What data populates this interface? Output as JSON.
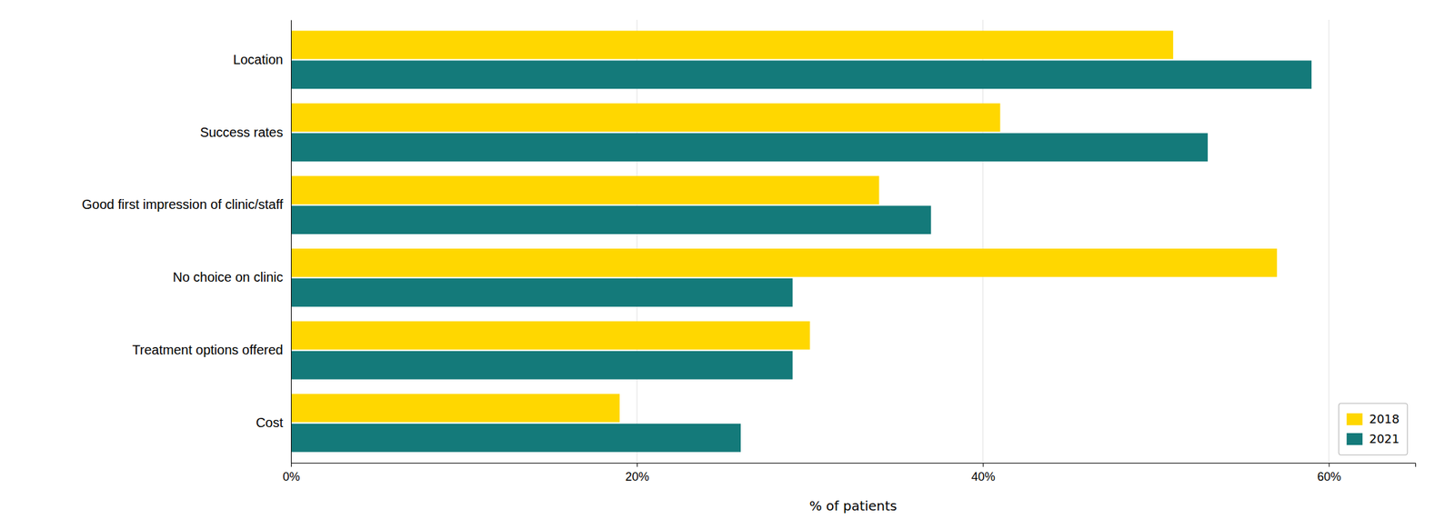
{
  "chart_data": {
    "type": "bar",
    "orientation": "horizontal",
    "categories": [
      "Location",
      "Success rates",
      "Good first impression of clinic/staff",
      "No choice on clinic",
      "Treatment options offered",
      "Cost"
    ],
    "series": [
      {
        "name": "2018",
        "color": "#FFD700",
        "values": [
          51,
          41,
          34,
          57,
          30,
          19
        ]
      },
      {
        "name": "2021",
        "color": "#147A7A",
        "values": [
          59,
          53,
          37,
          29,
          29,
          26
        ]
      }
    ],
    "xlabel": "% of patients",
    "xlim": [
      0,
      65
    ],
    "xticks": [
      {
        "value": 0,
        "label": "0%"
      },
      {
        "value": 20,
        "label": "20%"
      },
      {
        "value": 40,
        "label": "40%"
      },
      {
        "value": 60,
        "label": "60%"
      }
    ],
    "grid": true,
    "legend": "lower right"
  }
}
